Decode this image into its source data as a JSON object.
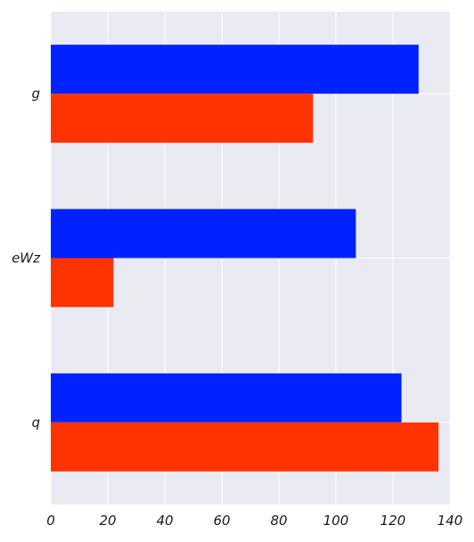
{
  "chart_data": {
    "type": "bar",
    "orientation": "horizontal",
    "title": "",
    "xlabel": "",
    "ylabel": "",
    "categories": [
      "g",
      "eWz",
      "q"
    ],
    "series": [
      {
        "color": "#0022ff",
        "values": [
          129,
          107,
          123
        ]
      },
      {
        "color": "#ff3300",
        "values": [
          92,
          22,
          136
        ]
      }
    ],
    "xlim": [
      0,
      140
    ],
    "xticks": [
      0,
      20,
      40,
      60,
      80,
      100,
      120,
      140
    ],
    "xtick_labels": [
      "0",
      "20",
      "40",
      "60",
      "80",
      "100",
      "120",
      "140"
    ],
    "grid": true,
    "legend": "none",
    "background_color": "#eaeaf2"
  }
}
